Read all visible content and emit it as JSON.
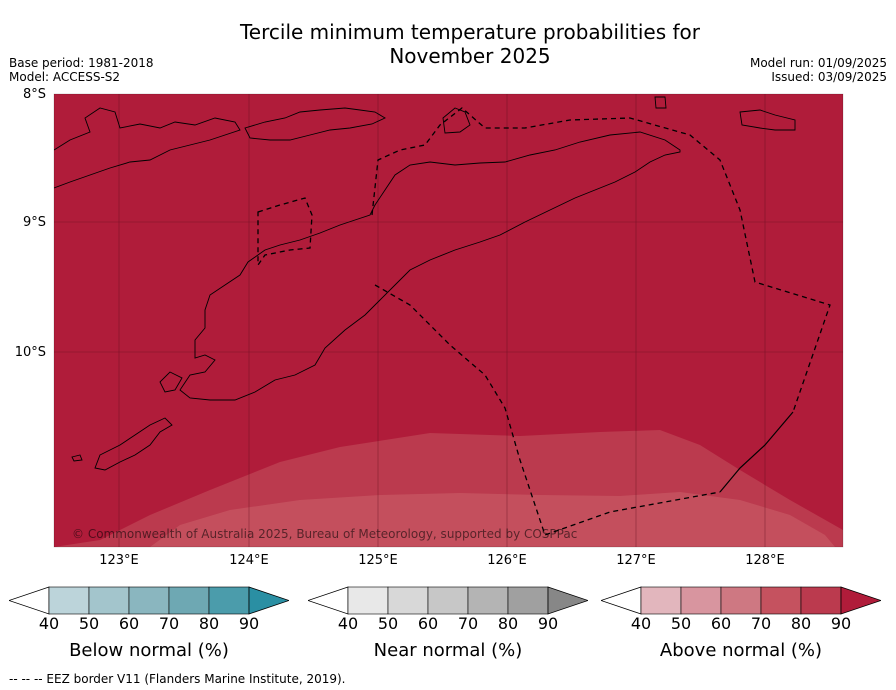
{
  "title_line1": "Tercile minimum temperature probabilities for",
  "title_line2": "November 2025",
  "meta_left": {
    "base_period": "Base period: 1981-2018",
    "model": "Model: ACCESS-S2"
  },
  "meta_right": {
    "model_run": "Model run: 01/09/2025",
    "issued": "Issued: 03/09/2025"
  },
  "map": {
    "lat_labels": [
      "8°S",
      "9°S",
      "10°S"
    ],
    "lon_labels": [
      "123°E",
      "124°E",
      "125°E",
      "126°E",
      "127°E",
      "128°E"
    ],
    "copyright": "© Commonwealth of Australia 2025, Bureau of Meteorology, supported by COSPPac",
    "colors": {
      "ocean_above_90": "#b01c3a",
      "above_80": "#bb3a4e",
      "above_70": "#c5525f",
      "coast": "#000000"
    }
  },
  "colorbars": [
    {
      "title": "Below normal (%)",
      "ticks": [
        "40",
        "50",
        "60",
        "70",
        "80",
        "90"
      ],
      "colors": [
        "#bcd4da",
        "#a3c5cc",
        "#8ab6bf",
        "#6ea8b3",
        "#4b9cab",
        "#2a8fa3"
      ]
    },
    {
      "title": "Near normal (%)",
      "ticks": [
        "40",
        "50",
        "60",
        "70",
        "80",
        "90"
      ],
      "colors": [
        "#e8e8e8",
        "#d8d8d8",
        "#c7c7c7",
        "#b4b4b4",
        "#a0a0a0",
        "#878787"
      ]
    },
    {
      "title": "Above normal (%)",
      "ticks": [
        "40",
        "50",
        "60",
        "70",
        "80",
        "90"
      ],
      "colors": [
        "#e2b6bd",
        "#d8959f",
        "#ce7882",
        "#c5525f",
        "#bb3a4e",
        "#b01c3a"
      ]
    }
  ],
  "footer": {
    "eez_legend": "--  --  -- EEZ border V11 (Flanders Marine Institute, 2019)."
  }
}
